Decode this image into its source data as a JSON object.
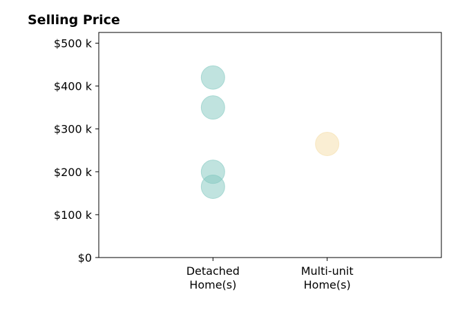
{
  "chart_data": {
    "type": "scatter",
    "title": "Selling Price",
    "xlabel": "",
    "ylabel": "",
    "categories": [
      [
        "Detached",
        "Home(s)"
      ],
      [
        "Multi-unit",
        "Home(s)"
      ]
    ],
    "xlim": [
      -1,
      2
    ],
    "ylim": [
      0,
      525
    ],
    "yticks": [
      0,
      100,
      200,
      300,
      400,
      500
    ],
    "ytick_labels": [
      "$0",
      "$100 k",
      "$200 k",
      "$300 k",
      "$400 k",
      "$500 k"
    ],
    "series": [
      {
        "category": 0,
        "color": "#81c8c0",
        "values": [
          420,
          350,
          200,
          165
        ]
      },
      {
        "category": 1,
        "color": "#f5dea8",
        "values": [
          265
        ]
      }
    ],
    "grid": false,
    "legend": "none"
  }
}
